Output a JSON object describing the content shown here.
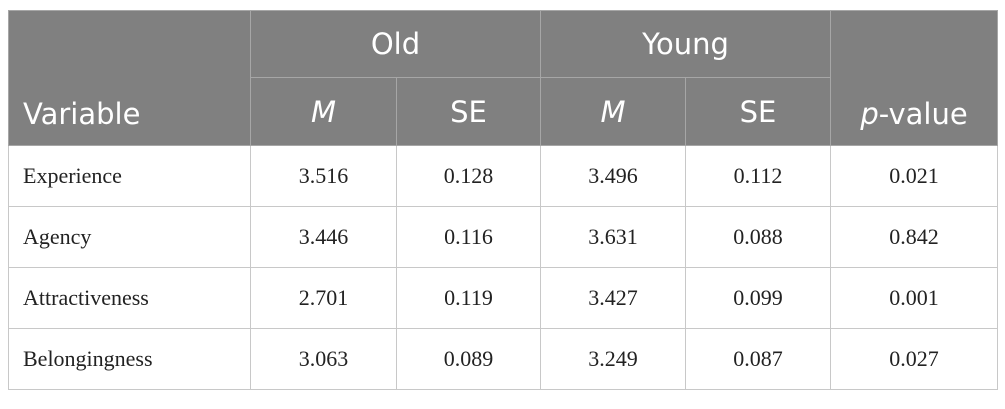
{
  "table": {
    "header": {
      "variable": "Variable",
      "groups": [
        "Old",
        "Young"
      ],
      "subheaders": [
        "M",
        "SE",
        "M",
        "SE"
      ],
      "p_value": "p-value"
    },
    "rows": [
      [
        "Experience",
        "3.516",
        "0.128",
        "3.496",
        "0.112",
        "0.021"
      ],
      [
        "Agency",
        "3.446",
        "0.116",
        "3.631",
        "0.088",
        "0.842"
      ],
      [
        "Attractiveness",
        "2.701",
        "0.119",
        "3.427",
        "0.099",
        "0.001"
      ],
      [
        "Belongingness",
        "3.063",
        "0.089",
        "3.249",
        "0.087",
        "0.027"
      ]
    ]
  }
}
